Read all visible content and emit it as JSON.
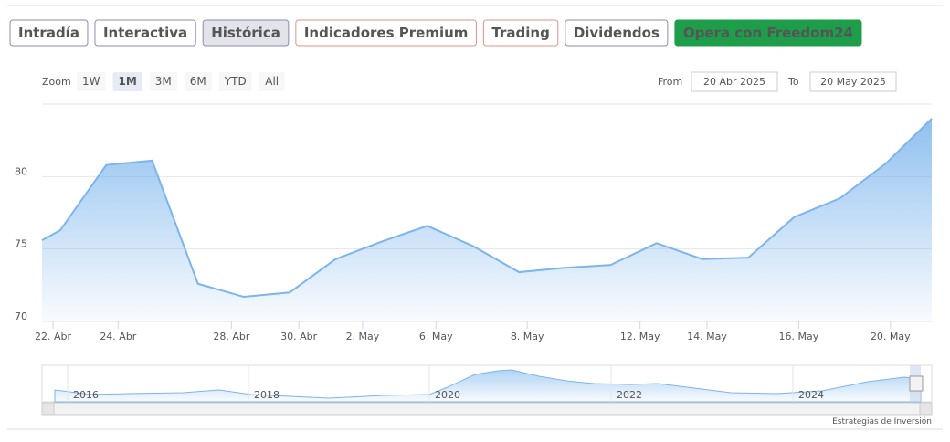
{
  "tabs": [
    "Intradía",
    "Interactiva",
    "Histórica",
    "Indicadores Premium",
    "Trading",
    "Dividendos",
    "Opera con Freedom24"
  ],
  "zoom": {
    "label": "Zoom",
    "buttons": [
      "1W",
      "1M",
      "3M",
      "6M",
      "YTD",
      "All"
    ]
  },
  "range": {
    "from_label": "From",
    "from": "20 Abr 2025",
    "to_label": "To",
    "to": "20 May 2025"
  },
  "navigator": {
    "labels": [
      "2016",
      "2018",
      "2020",
      "2022",
      "2024"
    ]
  },
  "credit": "Estrategias de Inversión",
  "chart_data": {
    "type": "area",
    "color": "#7cb5ec",
    "grid": true,
    "x": [
      0.6,
      1,
      2,
      3,
      4,
      5,
      6,
      7,
      8,
      9,
      10,
      11,
      12,
      13,
      14,
      15,
      16,
      17,
      18,
      19,
      20
    ],
    "values": [
      75.6,
      76.3,
      80.8,
      81.1,
      72.6,
      71.7,
      72.0,
      74.3,
      75.5,
      76.6,
      75.2,
      73.4,
      73.7,
      73.9,
      75.4,
      74.3,
      74.4,
      77.2,
      78.5,
      80.9,
      84.0
    ],
    "xlim": [
      0.6,
      20
    ],
    "ylim": [
      70,
      85
    ],
    "yticks": [
      70,
      75,
      80
    ],
    "xticks": [
      {
        "value": 0.84,
        "label": "22. Abr"
      },
      {
        "value": 2.26,
        "label": "24. Abr"
      },
      {
        "value": 4.73,
        "label": "28. Abr"
      },
      {
        "value": 6.2,
        "label": "30. Abr"
      },
      {
        "value": 7.59,
        "label": "2. May"
      },
      {
        "value": 9.19,
        "label": "6. May"
      },
      {
        "value": 11.18,
        "label": "8. May"
      },
      {
        "value": 13.64,
        "label": "12. May"
      },
      {
        "value": 15.1,
        "label": "14. May"
      },
      {
        "value": 17.1,
        "label": "16. May"
      },
      {
        "value": 19.1,
        "label": "20. May"
      }
    ]
  }
}
